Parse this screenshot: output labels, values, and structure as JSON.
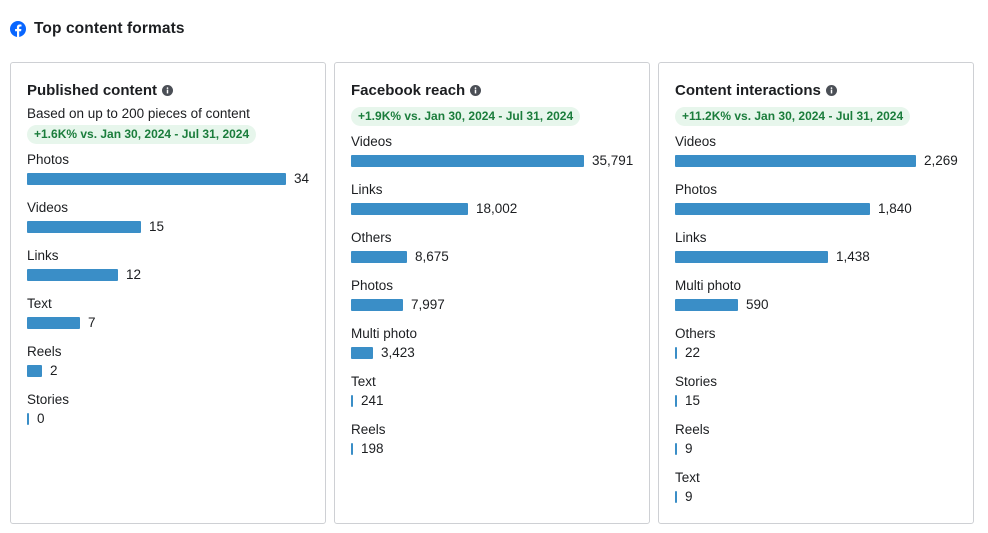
{
  "header": {
    "title": "Top content formats",
    "icon": "facebook-logo-icon",
    "brand_color": "#0866ff"
  },
  "colors": {
    "bar": "#3a8ec7",
    "badge_bg": "#e7f6ec",
    "badge_text": "#1b7d3c"
  },
  "cards": [
    {
      "title": "Published content",
      "subtitle": "Based on up to 200 pieces of content",
      "badge": "+1.6K% vs. Jan 30, 2024 - Jul 31, 2024",
      "max": 34,
      "rows": [
        {
          "label": "Photos",
          "value": 34,
          "display": "34"
        },
        {
          "label": "Videos",
          "value": 15,
          "display": "15"
        },
        {
          "label": "Links",
          "value": 12,
          "display": "12"
        },
        {
          "label": "Text",
          "value": 7,
          "display": "7"
        },
        {
          "label": "Reels",
          "value": 2,
          "display": "2"
        },
        {
          "label": "Stories",
          "value": 0,
          "display": "0"
        }
      ]
    },
    {
      "title": "Facebook reach",
      "subtitle": "",
      "badge": "+1.9K% vs. Jan 30, 2024 - Jul 31, 2024",
      "max": 35791,
      "rows": [
        {
          "label": "Videos",
          "value": 35791,
          "display": "35,791"
        },
        {
          "label": "Links",
          "value": 18002,
          "display": "18,002"
        },
        {
          "label": "Others",
          "value": 8675,
          "display": "8,675"
        },
        {
          "label": "Photos",
          "value": 7997,
          "display": "7,997"
        },
        {
          "label": "Multi photo",
          "value": 3423,
          "display": "3,423"
        },
        {
          "label": "Text",
          "value": 241,
          "display": "241"
        },
        {
          "label": "Reels",
          "value": 198,
          "display": "198"
        }
      ]
    },
    {
      "title": "Content interactions",
      "subtitle": "",
      "badge": "+11.2K% vs. Jan 30, 2024 - Jul 31, 2024",
      "max": 2269,
      "rows": [
        {
          "label": "Videos",
          "value": 2269,
          "display": "2,269"
        },
        {
          "label": "Photos",
          "value": 1840,
          "display": "1,840"
        },
        {
          "label": "Links",
          "value": 1438,
          "display": "1,438"
        },
        {
          "label": "Multi photo",
          "value": 590,
          "display": "590"
        },
        {
          "label": "Others",
          "value": 22,
          "display": "22"
        },
        {
          "label": "Stories",
          "value": 15,
          "display": "15"
        },
        {
          "label": "Reels",
          "value": 9,
          "display": "9"
        },
        {
          "label": "Text",
          "value": 9,
          "display": "9"
        }
      ]
    }
  ]
}
